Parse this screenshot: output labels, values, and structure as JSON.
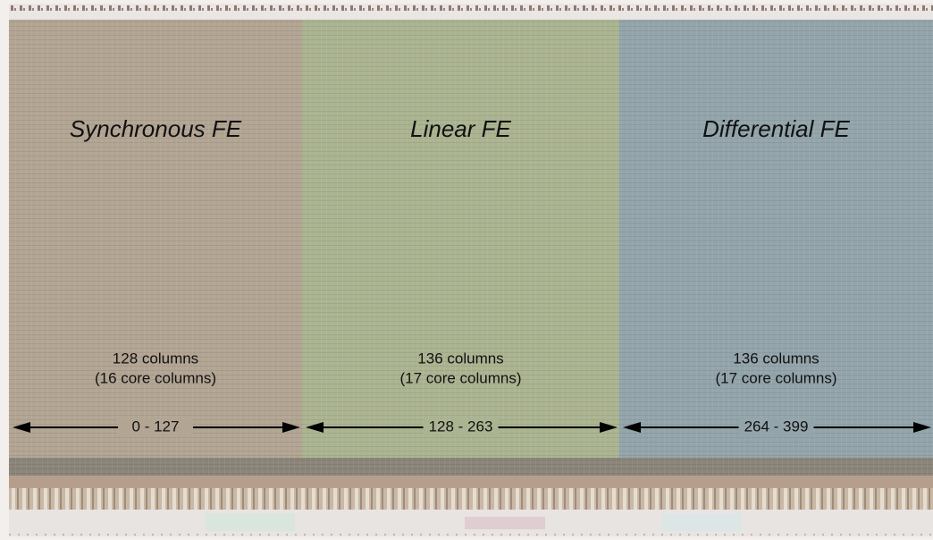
{
  "regions": [
    {
      "title": "Synchronous FE",
      "columns": "128 columns",
      "core_columns": "(16 core columns)",
      "range": "0 - 127"
    },
    {
      "title": "Linear FE",
      "columns": "136 columns",
      "core_columns": "(17 core columns)",
      "range": "128 - 263"
    },
    {
      "title": "Differential FE",
      "columns": "136 columns",
      "core_columns": "(17 core columns)",
      "range": "264 - 399"
    }
  ]
}
